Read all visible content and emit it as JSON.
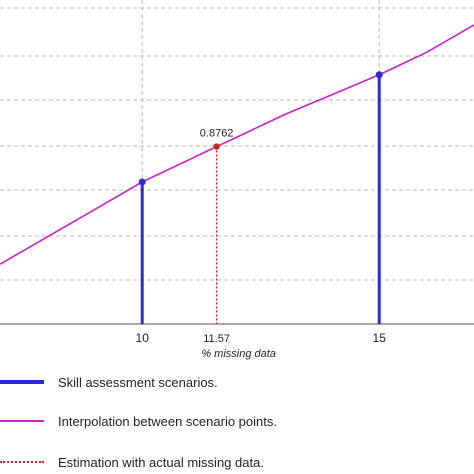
{
  "chart_data": {
    "type": "line",
    "xlabel": "% missing data",
    "x_ticks": [
      10,
      15
    ],
    "estimate": {
      "x": 11.57,
      "x_label": "11.57",
      "y": 0.8762,
      "y_label": "0.8762"
    },
    "scenario_points": [
      {
        "x": 10,
        "y": 0.862
      },
      {
        "x": 15,
        "y": 0.905
      }
    ],
    "interpolation_curve": {
      "x": [
        7.0,
        8.0,
        9.0,
        10.0,
        11.0,
        11.57,
        12.0,
        13.0,
        14.0,
        15.0,
        16.0,
        17.0
      ],
      "y": [
        0.829,
        0.84,
        0.851,
        0.862,
        0.871,
        0.8762,
        0.88,
        0.889,
        0.897,
        0.905,
        0.914,
        0.925
      ]
    },
    "xlim": [
      7.0,
      17.0
    ],
    "ylim": [
      0.805,
      0.935
    ],
    "grid": true,
    "legend": [
      {
        "label": "Skill assessment scenarios.",
        "color": "#2a2ad6",
        "style": "solid"
      },
      {
        "label": "Interpolation between scenario points.",
        "color": "#cc22cc",
        "style": "solid"
      },
      {
        "label": "Estimation with actual missing data.",
        "color": "#cc2222",
        "style": "dotted"
      }
    ]
  }
}
